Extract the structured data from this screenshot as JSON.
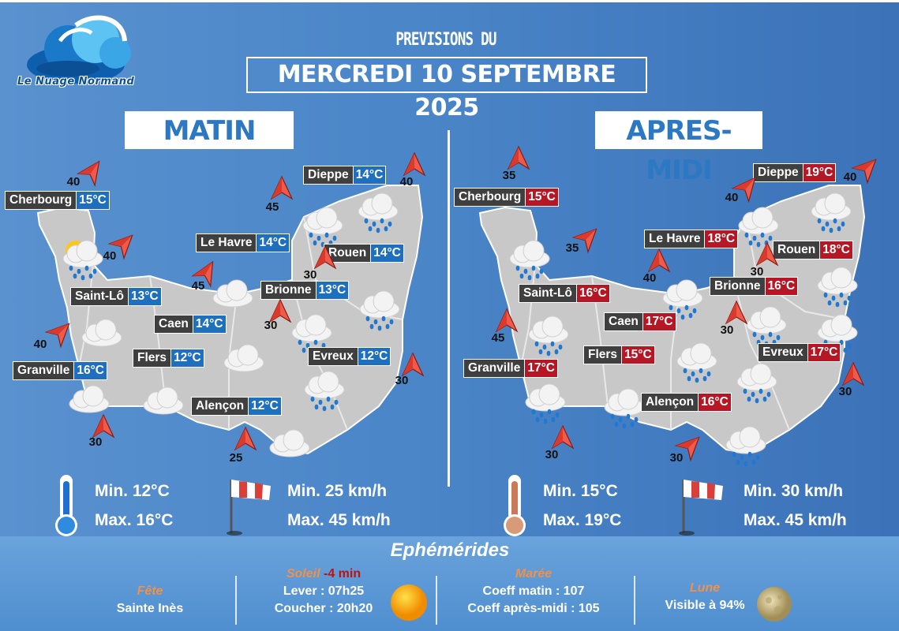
{
  "brand": {
    "logo_text": "Le Nuage Normand"
  },
  "header": {
    "prefix": "PREVISIONS DU",
    "date": "MERCREDI 10 SEPTEMBRE 2025"
  },
  "sections": {
    "morning": "MATIN",
    "afternoon": "APRES-MIDI"
  },
  "colors": {
    "morning_temp": "#1e6fbd",
    "afternoon_temp": "#b51824",
    "city_label": "#3f3f3f",
    "map_fill": "#c8c8c8"
  },
  "morning": {
    "cities": [
      {
        "name": "Cherbourg",
        "temp": "15°C"
      },
      {
        "name": "Dieppe",
        "temp": "14°C"
      },
      {
        "name": "Le Havre",
        "temp": "14°C"
      },
      {
        "name": "Rouen",
        "temp": "14°C"
      },
      {
        "name": "Saint-Lô",
        "temp": "13°C"
      },
      {
        "name": "Brionne",
        "temp": "13°C"
      },
      {
        "name": "Caen",
        "temp": "14°C"
      },
      {
        "name": "Flers",
        "temp": "12°C"
      },
      {
        "name": "Evreux",
        "temp": "12°C"
      },
      {
        "name": "Granville",
        "temp": "16°C"
      },
      {
        "name": "Alençon",
        "temp": "12°C"
      }
    ],
    "winds": [
      "40",
      "45",
      "40",
      "40",
      "45",
      "30",
      "30",
      "40",
      "30",
      "30",
      "25"
    ],
    "weather_icons": [
      "sun-rain-icon",
      "rain-icon",
      "rain-icon",
      "cloud-icon",
      "rain-icon",
      "cloud-icon",
      "rain-icon",
      "cloud-icon",
      "rain-icon",
      "cloud-icon",
      "cloud-icon",
      "cloud-icon"
    ],
    "stats": {
      "temp_min": "Min. 12°C",
      "temp_max": "Max. 16°C",
      "wind_min": "Min. 25 km/h",
      "wind_max": "Max. 45 km/h"
    }
  },
  "afternoon": {
    "cities": [
      {
        "name": "Cherbourg",
        "temp": "15°C"
      },
      {
        "name": "Dieppe",
        "temp": "19°C"
      },
      {
        "name": "Le Havre",
        "temp": "18°C"
      },
      {
        "name": "Rouen",
        "temp": "18°C"
      },
      {
        "name": "Saint-Lô",
        "temp": "16°C"
      },
      {
        "name": "Brionne",
        "temp": "16°C"
      },
      {
        "name": "Caen",
        "temp": "17°C"
      },
      {
        "name": "Flers",
        "temp": "15°C"
      },
      {
        "name": "Evreux",
        "temp": "17°C"
      },
      {
        "name": "Granville",
        "temp": "17°C"
      },
      {
        "name": "Alençon",
        "temp": "16°C"
      }
    ],
    "winds": [
      "35",
      "40",
      "40",
      "35",
      "40",
      "30",
      "45",
      "30",
      "30",
      "30",
      "30"
    ],
    "weather_icons": [
      "rain-icon",
      "rain-icon",
      "rain-icon",
      "rain-icon",
      "rain-icon",
      "rain-icon",
      "rain-icon",
      "rain-icon",
      "rain-icon",
      "rain-icon",
      "rain-icon",
      "rain-icon",
      "rain-icon"
    ],
    "stats": {
      "temp_min": "Min. 15°C",
      "temp_max": "Max. 19°C",
      "wind_min": "Min. 30 km/h",
      "wind_max": "Max. 45 km/h"
    }
  },
  "ephemerides": {
    "title": "Ephémérides",
    "fete": {
      "label": "Fête",
      "value": "Sainte Inès"
    },
    "soleil": {
      "label": "Soleil",
      "delta": "-4 min",
      "lever": "Lever : 07h25",
      "coucher": "Coucher : 20h20"
    },
    "maree": {
      "label": "Marée",
      "matin": "Coeff matin : 107",
      "apres_midi": "Coeff après-midi : 105"
    },
    "lune": {
      "label": "Lune",
      "value": "Visible à 94%"
    }
  }
}
